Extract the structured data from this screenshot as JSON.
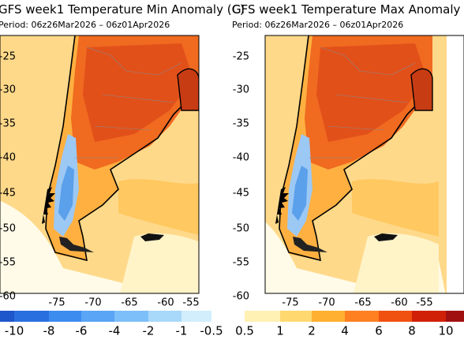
{
  "panels": [
    {
      "title": "GFS week1 Temperature Min Anomaly (C)",
      "period": "Period: 06z26Mar2026 – 06z01Apr2026",
      "lat_labels": [
        "-25",
        "-30",
        "-35",
        "-40",
        "-45",
        "-50",
        "-55",
        "-60"
      ],
      "lon_labels": [
        "-75",
        "-70",
        "-65",
        "-60",
        "-55"
      ]
    },
    {
      "title": "GFS week1 Temperature Max Anomaly",
      "period": "Period: 06z26Mar2026 – 06z01Apr2026",
      "lat_labels": [
        "-25",
        "-30",
        "-35",
        "-40",
        "-45",
        "-50",
        "-55",
        "-60"
      ],
      "lon_labels": [
        "-75",
        "-70",
        "-65",
        "-60",
        "-55"
      ]
    }
  ],
  "colorbar": {
    "labels": [
      "-10",
      "-8",
      "-6",
      "-4",
      "-2",
      "-1",
      "-0.5",
      "0.5",
      "1",
      "2",
      "4",
      "6",
      "8",
      "10"
    ],
    "colors": [
      "#1e56cc",
      "#2a6fe0",
      "#3c8cf0",
      "#5aa5f5",
      "#7dbff8",
      "#a8d8fa",
      "#d2eefc",
      "#ffffff",
      "#fff0b4",
      "#ffd870",
      "#ffb030",
      "#ff8020",
      "#f05010",
      "#d02008",
      "#a01010"
    ]
  }
}
